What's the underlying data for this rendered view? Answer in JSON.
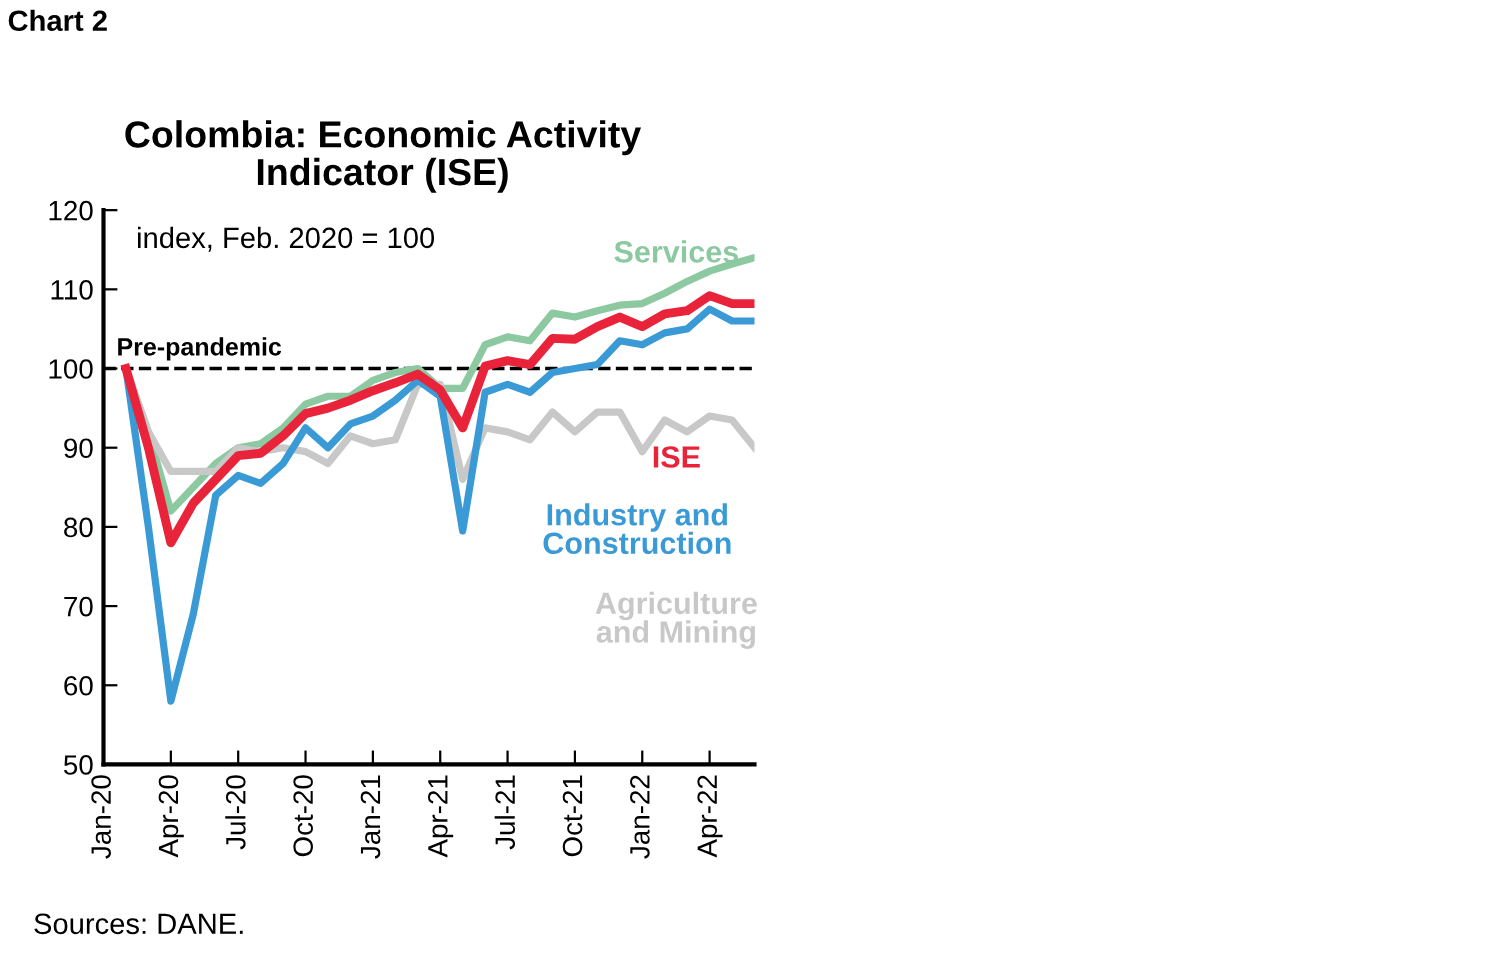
{
  "chart_data": {
    "type": "line",
    "title": "Colombia: Economic Activity\nIndicator (ISE)",
    "annotations": [
      "index, Feb. 2020 = 100",
      "Chart 2",
      "Sources: DANE."
    ],
    "x": [
      "2020-02",
      "2020-03",
      "2020-04",
      "2020-05",
      "2020-06",
      "2020-07",
      "2020-08",
      "2020-09",
      "2020-10",
      "2020-11",
      "2020-12",
      "2021-01",
      "2021-02",
      "2021-03",
      "2021-04",
      "2021-05",
      "2021-06",
      "2021-07",
      "2021-08",
      "2021-09",
      "2021-10",
      "2021-11",
      "2021-12",
      "2022-01",
      "2022-02",
      "2022-03",
      "2022-04",
      "2022-05",
      "2022-06"
    ],
    "series": [
      {
        "name": "Services",
        "color": "#8cc8a0",
        "values": [
          100,
          92,
          82,
          85,
          88,
          90,
          90.5,
          92.5,
          95.5,
          96.5,
          96.5,
          98.5,
          99.5,
          100,
          97.5,
          97.5,
          103,
          104,
          103.5,
          107,
          106.5,
          107.3,
          108,
          108.2,
          109.5,
          111,
          112.3,
          113.2,
          114
        ]
      },
      {
        "name": "Agriculture\nand Mining",
        "color": "#c8c8c8",
        "values": [
          100,
          92,
          87,
          87,
          87,
          90,
          89.5,
          90,
          89.5,
          88,
          91.5,
          90.5,
          91,
          98,
          98,
          86,
          92.5,
          92,
          91,
          94.5,
          92,
          94.5,
          94.5,
          89.5,
          93.5,
          92,
          94,
          93.5,
          90
        ]
      },
      {
        "name": "Industry and\nConstruction",
        "color": "#3a9ad6",
        "values": [
          100,
          80,
          58,
          69,
          84,
          86.5,
          85.5,
          88,
          92.5,
          90,
          93,
          94,
          96,
          98.5,
          96.5,
          79.5,
          97,
          98,
          97,
          99.5,
          100,
          100.5,
          103.5,
          103,
          104.5,
          105,
          107.5,
          106,
          106
        ]
      },
      {
        "name": "ISE",
        "color": "#e8233a",
        "values": [
          100,
          90,
          78,
          83,
          86,
          89,
          89.3,
          91.5,
          94.3,
          95,
          96,
          97.2,
          98.2,
          99.3,
          97.3,
          92.5,
          100.3,
          101,
          100.5,
          103.8,
          103.7,
          105.3,
          106.5,
          105.3,
          106.9,
          107.3,
          109.2,
          108.2,
          108.2
        ]
      }
    ],
    "ref_lines": [
      {
        "axis": "y",
        "value": 100,
        "label": "Pre-pandemic",
        "color": "#000000",
        "line_style": "dashed"
      }
    ],
    "xlim": [
      "2020-01",
      "2022-06"
    ],
    "xticks": [
      {
        "value": "2020-01",
        "label": "Jan-20"
      },
      {
        "value": "2020-04",
        "label": "Apr-20"
      },
      {
        "value": "2020-07",
        "label": "Jul-20"
      },
      {
        "value": "2020-10",
        "label": "Oct-20"
      },
      {
        "value": "2021-01",
        "label": "Jan-21"
      },
      {
        "value": "2021-04",
        "label": "Apr-21"
      },
      {
        "value": "2021-07",
        "label": "Jul-21"
      },
      {
        "value": "2021-10",
        "label": "Oct-21"
      },
      {
        "value": "2022-01",
        "label": "Jan-22"
      },
      {
        "value": "2022-04",
        "label": "Apr-22"
      }
    ],
    "ylim": [
      50,
      120
    ],
    "yticks": [
      50,
      60,
      70,
      80,
      90,
      100,
      110,
      120
    ],
    "grid": false,
    "legend": false,
    "marker": "none",
    "line_style": "solid"
  }
}
